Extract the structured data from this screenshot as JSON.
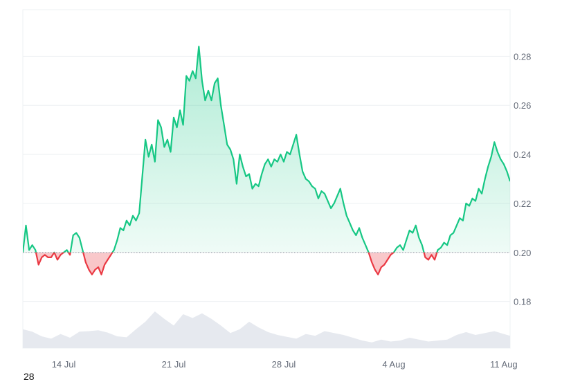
{
  "chart_data": {
    "type": "area",
    "baseline": 0.2,
    "ylim": [
      0.161,
      0.299
    ],
    "y_ticks": [
      "0.18",
      "0.20",
      "0.22",
      "0.24",
      "0.26",
      "0.28"
    ],
    "x_tick_labels": [
      "14 Jul",
      "21 Jul",
      "28 Jul",
      "4 Aug",
      "11 Aug"
    ],
    "x_tick_days": [
      14,
      21,
      28,
      35,
      42
    ],
    "x_range_days": [
      11.4,
      42.4
    ],
    "price_series": [
      [
        11.4,
        0.2
      ],
      [
        11.6,
        0.211
      ],
      [
        11.8,
        0.201
      ],
      [
        12.0,
        0.203
      ],
      [
        12.2,
        0.201
      ],
      [
        12.4,
        0.195
      ],
      [
        12.6,
        0.198
      ],
      [
        12.8,
        0.199
      ],
      [
        13.0,
        0.198
      ],
      [
        13.2,
        0.198
      ],
      [
        13.4,
        0.2
      ],
      [
        13.6,
        0.197
      ],
      [
        13.8,
        0.199
      ],
      [
        14.2,
        0.201
      ],
      [
        14.4,
        0.199
      ],
      [
        14.6,
        0.207
      ],
      [
        14.8,
        0.208
      ],
      [
        15.0,
        0.206
      ],
      [
        15.2,
        0.201
      ],
      [
        15.4,
        0.196
      ],
      [
        15.6,
        0.193
      ],
      [
        15.8,
        0.191
      ],
      [
        16.0,
        0.193
      ],
      [
        16.2,
        0.194
      ],
      [
        16.4,
        0.191
      ],
      [
        16.6,
        0.195
      ],
      [
        16.8,
        0.197
      ],
      [
        17.0,
        0.199
      ],
      [
        17.2,
        0.201
      ],
      [
        17.4,
        0.205
      ],
      [
        17.6,
        0.21
      ],
      [
        17.8,
        0.209
      ],
      [
        18.0,
        0.213
      ],
      [
        18.2,
        0.211
      ],
      [
        18.4,
        0.215
      ],
      [
        18.6,
        0.213
      ],
      [
        18.8,
        0.216
      ],
      [
        19.0,
        0.231
      ],
      [
        19.2,
        0.246
      ],
      [
        19.4,
        0.239
      ],
      [
        19.6,
        0.244
      ],
      [
        19.8,
        0.237
      ],
      [
        20.0,
        0.254
      ],
      [
        20.2,
        0.251
      ],
      [
        20.4,
        0.243
      ],
      [
        20.6,
        0.246
      ],
      [
        20.8,
        0.241
      ],
      [
        21.0,
        0.255
      ],
      [
        21.2,
        0.251
      ],
      [
        21.4,
        0.258
      ],
      [
        21.6,
        0.252
      ],
      [
        21.8,
        0.272
      ],
      [
        22.0,
        0.27
      ],
      [
        22.2,
        0.274
      ],
      [
        22.4,
        0.271
      ],
      [
        22.6,
        0.284
      ],
      [
        22.8,
        0.27
      ],
      [
        23.0,
        0.262
      ],
      [
        23.2,
        0.266
      ],
      [
        23.4,
        0.262
      ],
      [
        23.6,
        0.269
      ],
      [
        23.8,
        0.271
      ],
      [
        24.0,
        0.26
      ],
      [
        24.2,
        0.252
      ],
      [
        24.4,
        0.244
      ],
      [
        24.6,
        0.242
      ],
      [
        24.8,
        0.238
      ],
      [
        25.0,
        0.228
      ],
      [
        25.2,
        0.24
      ],
      [
        25.4,
        0.235
      ],
      [
        25.6,
        0.231
      ],
      [
        25.8,
        0.232
      ],
      [
        26.0,
        0.226
      ],
      [
        26.2,
        0.228
      ],
      [
        26.4,
        0.227
      ],
      [
        26.6,
        0.232
      ],
      [
        26.8,
        0.236
      ],
      [
        27.0,
        0.238
      ],
      [
        27.2,
        0.235
      ],
      [
        27.4,
        0.238
      ],
      [
        27.6,
        0.237
      ],
      [
        27.8,
        0.24
      ],
      [
        28.0,
        0.237
      ],
      [
        28.2,
        0.241
      ],
      [
        28.4,
        0.24
      ],
      [
        28.6,
        0.244
      ],
      [
        28.8,
        0.248
      ],
      [
        29.0,
        0.24
      ],
      [
        29.2,
        0.233
      ],
      [
        29.4,
        0.23
      ],
      [
        29.6,
        0.229
      ],
      [
        29.8,
        0.227
      ],
      [
        30.0,
        0.226
      ],
      [
        30.2,
        0.222
      ],
      [
        30.4,
        0.225
      ],
      [
        30.6,
        0.224
      ],
      [
        30.8,
        0.221
      ],
      [
        31.0,
        0.218
      ],
      [
        31.2,
        0.22
      ],
      [
        31.4,
        0.223
      ],
      [
        31.6,
        0.226
      ],
      [
        31.8,
        0.22
      ],
      [
        32.0,
        0.215
      ],
      [
        32.2,
        0.212
      ],
      [
        32.4,
        0.209
      ],
      [
        32.6,
        0.207
      ],
      [
        32.8,
        0.21
      ],
      [
        33.0,
        0.206
      ],
      [
        33.2,
        0.203
      ],
      [
        33.4,
        0.2
      ],
      [
        33.6,
        0.196
      ],
      [
        33.8,
        0.193
      ],
      [
        34.0,
        0.191
      ],
      [
        34.2,
        0.194
      ],
      [
        34.4,
        0.195
      ],
      [
        34.6,
        0.197
      ],
      [
        34.8,
        0.199
      ],
      [
        35.0,
        0.2
      ],
      [
        35.2,
        0.202
      ],
      [
        35.4,
        0.203
      ],
      [
        35.6,
        0.201
      ],
      [
        35.8,
        0.205
      ],
      [
        36.0,
        0.209
      ],
      [
        36.2,
        0.208
      ],
      [
        36.4,
        0.211
      ],
      [
        36.6,
        0.206
      ],
      [
        36.8,
        0.203
      ],
      [
        37.0,
        0.198
      ],
      [
        37.2,
        0.197
      ],
      [
        37.4,
        0.199
      ],
      [
        37.6,
        0.197
      ],
      [
        37.8,
        0.201
      ],
      [
        38.0,
        0.202
      ],
      [
        38.2,
        0.204
      ],
      [
        38.4,
        0.203
      ],
      [
        38.6,
        0.207
      ],
      [
        38.8,
        0.208
      ],
      [
        39.0,
        0.211
      ],
      [
        39.2,
        0.214
      ],
      [
        39.4,
        0.213
      ],
      [
        39.6,
        0.22
      ],
      [
        39.8,
        0.219
      ],
      [
        40.0,
        0.222
      ],
      [
        40.2,
        0.221
      ],
      [
        40.4,
        0.226
      ],
      [
        40.6,
        0.224
      ],
      [
        40.8,
        0.23
      ],
      [
        41.0,
        0.235
      ],
      [
        41.2,
        0.239
      ],
      [
        41.4,
        0.245
      ],
      [
        41.6,
        0.241
      ],
      [
        41.8,
        0.238
      ],
      [
        42.0,
        0.236
      ],
      [
        42.2,
        0.233
      ],
      [
        42.4,
        0.229
      ]
    ],
    "volume_series": [
      [
        11.4,
        0.4
      ],
      [
        12.0,
        0.35
      ],
      [
        12.6,
        0.25
      ],
      [
        13.2,
        0.2
      ],
      [
        13.8,
        0.3
      ],
      [
        14.4,
        0.22
      ],
      [
        15.0,
        0.35
      ],
      [
        15.6,
        0.36
      ],
      [
        16.2,
        0.38
      ],
      [
        16.8,
        0.33
      ],
      [
        17.4,
        0.25
      ],
      [
        18.0,
        0.23
      ],
      [
        18.6,
        0.4
      ],
      [
        19.2,
        0.56
      ],
      [
        19.8,
        0.78
      ],
      [
        20.4,
        0.62
      ],
      [
        21.0,
        0.48
      ],
      [
        21.6,
        0.72
      ],
      [
        22.2,
        0.64
      ],
      [
        22.8,
        0.74
      ],
      [
        23.4,
        0.62
      ],
      [
        24.0,
        0.48
      ],
      [
        24.6,
        0.32
      ],
      [
        25.2,
        0.4
      ],
      [
        25.8,
        0.56
      ],
      [
        26.4,
        0.44
      ],
      [
        27.0,
        0.34
      ],
      [
        27.6,
        0.28
      ],
      [
        28.2,
        0.24
      ],
      [
        28.8,
        0.2
      ],
      [
        29.4,
        0.3
      ],
      [
        30.0,
        0.26
      ],
      [
        30.6,
        0.36
      ],
      [
        31.2,
        0.32
      ],
      [
        31.8,
        0.28
      ],
      [
        32.4,
        0.22
      ],
      [
        33.0,
        0.16
      ],
      [
        33.6,
        0.12
      ],
      [
        34.2,
        0.18
      ],
      [
        34.8,
        0.14
      ],
      [
        35.4,
        0.16
      ],
      [
        36.0,
        0.22
      ],
      [
        36.6,
        0.18
      ],
      [
        37.2,
        0.14
      ],
      [
        37.8,
        0.16
      ],
      [
        38.4,
        0.18
      ],
      [
        39.0,
        0.28
      ],
      [
        39.6,
        0.34
      ],
      [
        40.2,
        0.28
      ],
      [
        40.8,
        0.32
      ],
      [
        41.4,
        0.36
      ],
      [
        42.0,
        0.3
      ],
      [
        42.4,
        0.26
      ]
    ],
    "volume_range": [
      0,
      1
    ],
    "colors": {
      "up": "#16c784",
      "down": "#ea3943",
      "up_fill": "#16c784",
      "down_fill": "#ea3943",
      "volume": "#e6e9ef",
      "grid": "#eef0f3",
      "baseline": "#9aa1ab",
      "axis_text": "#646b78"
    },
    "grid": true
  },
  "corner_label": "28"
}
